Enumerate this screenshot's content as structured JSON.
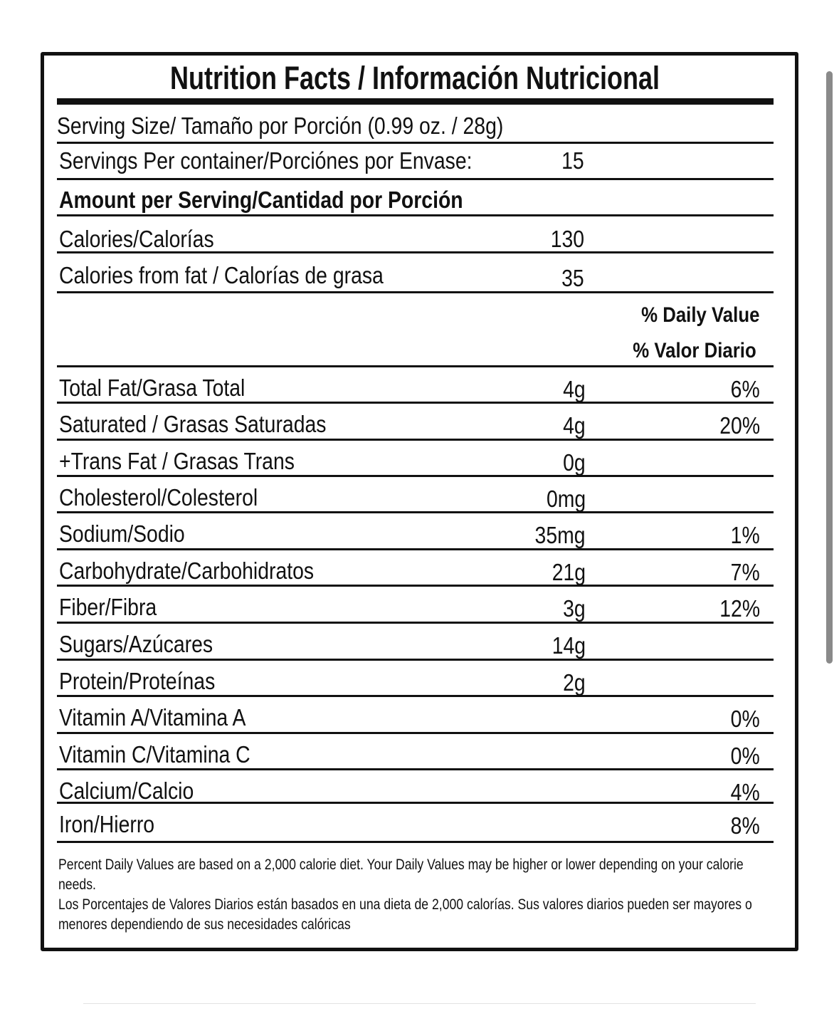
{
  "title": "Nutrition Facts / Información Nutricional",
  "serving_size": "Serving Size/ Tamaño por Porción  (0.99 oz. / 28g)",
  "servings_label": "Servings Per container/Porciónes por Envase:",
  "servings_value": "15",
  "amount_header": "Amount per Serving/Cantidad por Porción",
  "calories_label": "Calories/Calorías",
  "calories_value": "130",
  "calories_fat_label": "Calories from fat / Calorías de grasa",
  "calories_fat_value": "35",
  "dv_header_en": "% Daily Value",
  "dv_header_es": "% Valor Diario",
  "nutrients": [
    {
      "label": "Total Fat/Grasa Total",
      "amount": "4g",
      "dv": "6%"
    },
    {
      "label": "Saturated / Grasas Saturadas",
      "amount": "4g",
      "dv": "20%"
    },
    {
      "label": "+Trans Fat / Grasas Trans",
      "amount": "0g",
      "dv": ""
    },
    {
      "label": "Cholesterol/Colesterol",
      "amount": "0mg",
      "dv": ""
    },
    {
      "label": "Sodium/Sodio",
      "amount": "35mg",
      "dv": "1%"
    },
    {
      "label": "Carbohydrate/Carbohidratos",
      "amount": "21g",
      "dv": "7%"
    },
    {
      "label": "Fiber/Fibra",
      "amount": "3g",
      "dv": "12%"
    },
    {
      "label": "Sugars/Azúcares",
      "amount": "14g",
      "dv": ""
    },
    {
      "label": "Protein/Proteínas",
      "amount": "2g",
      "dv": ""
    },
    {
      "label": "Vitamin A/Vitamina A",
      "amount": "",
      "dv": "0%"
    },
    {
      "label": "Vitamin C/Vitamina C",
      "amount": "",
      "dv": "0%"
    },
    {
      "label": "Calcium/Calcio",
      "amount": "",
      "dv": "4%"
    },
    {
      "label": "Iron/Hierro",
      "amount": "",
      "dv": "8%"
    }
  ],
  "footnote_en": "Percent Daily Values are based on a 2,000 calorie diet. Your Daily Values may be higher or lower depending on your calorie needs.",
  "footnote_es": "Los Porcentajes de Valores Diarios están basados en una dieta de 2,000 calorías. Sus valores diarios pueden ser mayores o menores dependiendo de sus necesidades calóricas"
}
